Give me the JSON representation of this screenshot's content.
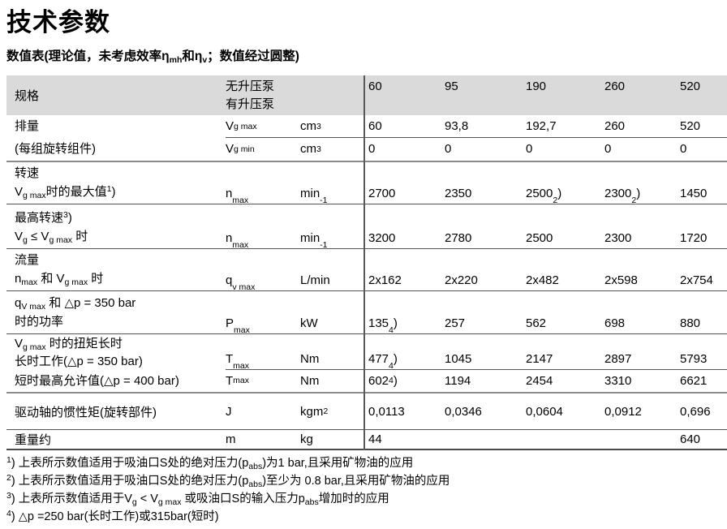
{
  "page": {
    "title": "技术参数",
    "subtitle": [
      {
        "t": "数值表(理论值，未考虑效率η"
      },
      {
        "sub": "mh"
      },
      {
        "t": "和η"
      },
      {
        "sub": "v"
      },
      {
        "t": "；数值经过圆整)"
      }
    ]
  },
  "colors": {
    "header_bg": "#dadada",
    "row_line": "#565656",
    "section_line": "#8c8c8c"
  },
  "table": {
    "header": {
      "spec": "规格",
      "variants": [
        "无升压泵",
        "有升压泵"
      ],
      "sizes_line1": [
        "60",
        "95",
        "",
        "",
        "520"
      ],
      "sizes_line2": [
        "",
        "",
        "190",
        "260",
        ""
      ]
    },
    "sections": [
      {
        "name_line1": "排量",
        "name_line2": "(每组旋转组件)",
        "rows": [
          {
            "symbol": [
              {
                "t": "V"
              },
              {
                "sub": "g max"
              }
            ],
            "unit": [
              {
                "t": "cm"
              },
              {
                "sup": "3"
              }
            ],
            "values": [
              "60",
              "93,8",
              "192,7",
              "260",
              "520"
            ]
          },
          {
            "symbol": [
              {
                "t": "V"
              },
              {
                "sub": "g min"
              }
            ],
            "unit": [
              {
                "t": "cm"
              },
              {
                "sup": "3"
              }
            ],
            "values": [
              "0",
              "0",
              "0",
              "0",
              "0"
            ]
          }
        ]
      },
      {
        "name_line1": "转速",
        "name_line2": [
          {
            "t": "V"
          },
          {
            "sub": "g max"
          },
          {
            "t": "时的最大值"
          },
          {
            "sup": "1"
          },
          {
            "t": ")"
          }
        ],
        "symbol": [
          {
            "t": "n"
          },
          {
            "sub": "max"
          }
        ],
        "unit": [
          {
            "t": "min"
          },
          {
            "sup": "-1"
          }
        ],
        "values": [
          "2700",
          "2350",
          [
            {
              "t": "2500 "
            },
            {
              "sup": "2"
            },
            {
              "t": ")"
            }
          ],
          [
            {
              "t": "2300 "
            },
            {
              "sup": "2"
            },
            {
              "t": ")"
            }
          ],
          "1450"
        ]
      },
      {
        "name_line1": [
          {
            "t": "最高转速"
          },
          {
            "sup": "3"
          },
          {
            "t": ")"
          }
        ],
        "name_line2": [
          {
            "t": "V"
          },
          {
            "sub": "g"
          },
          {
            "t": " ≤ V"
          },
          {
            "sub": "g max"
          },
          {
            "t": " 时"
          }
        ],
        "symbol": [
          {
            "t": "n"
          },
          {
            "sub": "max"
          }
        ],
        "unit": [
          {
            "t": "min"
          },
          {
            "sup": "-1"
          }
        ],
        "values": [
          "3200",
          "2780",
          "2500",
          "2300",
          "1720"
        ]
      },
      {
        "name_line1": "流量",
        "name_line2": [
          {
            "t": "n"
          },
          {
            "sub": "max"
          },
          {
            "t": " 和 V"
          },
          {
            "sub": "g max"
          },
          {
            "t": " 时"
          }
        ],
        "symbol": [
          {
            "t": "q"
          },
          {
            "sub": "v max"
          }
        ],
        "unit": "L/min",
        "values": [
          "2x162",
          "2x220",
          "2x482",
          "2x598",
          "2x754"
        ]
      },
      {
        "name_line1": [
          {
            "t": "q"
          },
          {
            "sub": "V max"
          },
          {
            "t": " 和 △p = 350 bar"
          }
        ],
        "name_line2": "时的功率",
        "symbol": [
          {
            "t": "P"
          },
          {
            "sub": "max"
          }
        ],
        "unit": "kW",
        "values": [
          [
            {
              "t": "135"
            },
            {
              "sup": "4"
            },
            {
              "t": ")"
            }
          ],
          "257",
          "562",
          "698",
          "880"
        ]
      },
      {
        "group_name": [
          {
            "t": "V"
          },
          {
            "sub": "g max"
          },
          {
            "t": " 时的扭矩长时"
          }
        ],
        "rows": [
          {
            "name": "长时工作(△p = 350 bar)",
            "symbol": [
              {
                "t": "T"
              },
              {
                "sub": "max"
              }
            ],
            "unit": "Nm",
            "values": [
              [
                {
                  "t": "477 "
                },
                {
                  "sup": "4"
                },
                {
                  "t": ")"
                }
              ],
              "1045",
              "2147",
              "2897",
              "5793"
            ]
          },
          {
            "name": "短时最高允许值(△p = 400 bar)",
            "symbol": [
              {
                "t": "T"
              },
              {
                "sub": "max"
              }
            ],
            "unit": "Nm",
            "values": [
              [
                {
                  "t": "602 "
                },
                {
                  "sup": "4"
                },
                {
                  "t": ")"
                }
              ],
              "1194",
              "2454",
              "3310",
              "6621"
            ]
          }
        ]
      },
      {
        "name": "驱动轴的惯性矩(旋转部件)",
        "symbol": "J",
        "unit": [
          {
            "t": "kgm"
          },
          {
            "sup": "2"
          }
        ],
        "values": [
          "0,0113",
          "0,0346",
          "0,0604",
          "0,0912",
          "0,696"
        ]
      },
      {
        "name": "重量约",
        "symbol": "m",
        "unit": "kg",
        "values": [
          "44",
          "",
          "",
          "",
          "640"
        ]
      }
    ]
  },
  "footnotes": [
    [
      {
        "sup": "1"
      },
      {
        "t": ") 上表所示数值适用于吸油口S处的绝对压力(p"
      },
      {
        "sub": "abs"
      },
      {
        "t": ")为1 bar,且采用矿物油的应用"
      }
    ],
    [
      {
        "sup": "2"
      },
      {
        "t": ") 上表所示数值适用于吸油口S处的绝对压力(p"
      },
      {
        "sub": "abs"
      },
      {
        "t": ")至少为 0.8 bar,且采用矿物油的应用"
      }
    ],
    [
      {
        "sup": "3"
      },
      {
        "t": ") 上表所示数值适用于V"
      },
      {
        "sub": "g"
      },
      {
        "t": " < V"
      },
      {
        "sub": "g max"
      },
      {
        "t": " 或吸油口S的输入压力p"
      },
      {
        "sub": "abs"
      },
      {
        "t": "增加时的应用"
      }
    ],
    [
      {
        "sup": "4"
      },
      {
        "t": ") △p =250 bar(长时工作)或315bar(短时)"
      }
    ]
  ]
}
